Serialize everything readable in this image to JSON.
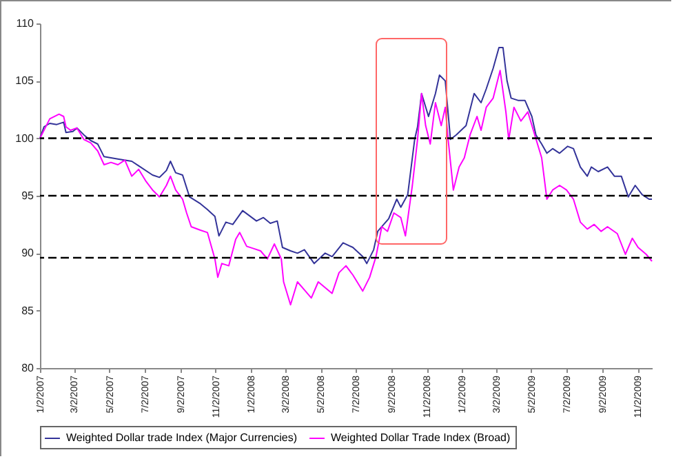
{
  "chart_data": {
    "type": "line",
    "x": [
      "2007-01-02",
      "2007-01-09",
      "2007-01-19",
      "2007-01-31",
      "2007-02-12",
      "2007-02-16",
      "2007-02-28",
      "2007-03-07",
      "2007-03-19",
      "2007-03-31",
      "2007-04-12",
      "2007-04-23",
      "2007-05-17",
      "2007-06-10",
      "2007-06-22",
      "2007-07-16",
      "2007-07-28",
      "2007-08-09",
      "2007-08-16",
      "2007-08-25",
      "2007-09-06",
      "2007-09-18",
      "2007-10-07",
      "2007-10-19",
      "2007-11-01",
      "2007-11-08",
      "2007-11-20",
      "2007-12-02",
      "2007-12-19",
      "2008-01-12",
      "2008-01-24",
      "2008-02-05",
      "2008-02-17",
      "2008-02-26",
      "2008-03-11",
      "2008-03-23",
      "2008-04-04",
      "2008-04-21",
      "2008-05-10",
      "2008-05-22",
      "2008-06-10",
      "2008-06-27",
      "2008-07-14",
      "2008-07-21",
      "2008-08-02",
      "2008-08-09",
      "2008-08-28",
      "2008-09-11",
      "2008-09-18",
      "2008-09-30",
      "2008-10-12",
      "2008-10-17",
      "2008-10-24",
      "2008-11-05",
      "2008-11-17",
      "2008-11-24",
      "2008-12-04",
      "2008-12-13",
      "2008-12-23",
      "2009-01-09",
      "2009-01-23",
      "2009-02-04",
      "2009-02-13",
      "2009-02-25",
      "2009-03-07",
      "2009-03-14",
      "2009-03-21",
      "2009-03-28",
      "2009-04-09",
      "2009-04-21",
      "2009-05-03",
      "2009-05-10",
      "2009-05-20",
      "2009-05-29",
      "2009-06-08",
      "2009-06-20",
      "2009-07-04",
      "2009-07-14",
      "2009-07-26",
      "2009-08-07",
      "2009-08-14",
      "2009-08-26",
      "2009-09-11",
      "2009-09-23",
      "2009-10-05",
      "2009-10-17",
      "2009-10-29",
      "2009-11-10",
      "2009-11-22",
      "2009-11-27"
    ],
    "series": [
      {
        "name": "Weighted Dollar trade Index (Major Currencies)",
        "color": "#333399",
        "values": [
          100.0,
          101.0,
          101.3,
          101.2,
          101.4,
          100.5,
          100.6,
          100.9,
          100.3,
          99.8,
          99.5,
          98.4,
          98.2,
          98.0,
          97.6,
          96.8,
          96.6,
          97.2,
          98.0,
          97.0,
          96.8,
          94.9,
          94.3,
          93.8,
          93.2,
          91.5,
          92.7,
          92.5,
          93.7,
          92.8,
          93.1,
          92.6,
          92.8,
          90.5,
          90.2,
          90.0,
          90.3,
          89.1,
          90.0,
          89.7,
          90.9,
          90.5,
          89.7,
          89.1,
          90.3,
          91.9,
          93.0,
          94.7,
          94.0,
          95.1,
          99.9,
          101.0,
          103.9,
          101.9,
          103.9,
          105.5,
          105.0,
          99.9,
          100.3,
          101.1,
          103.9,
          103.1,
          104.3,
          106.1,
          107.9,
          107.9,
          105.0,
          103.5,
          103.3,
          103.3,
          101.9,
          100.3,
          99.5,
          98.7,
          99.1,
          98.7,
          99.3,
          99.1,
          97.5,
          96.7,
          97.5,
          97.1,
          97.5,
          96.7,
          96.7,
          94.9,
          95.9,
          95.1,
          94.7,
          94.7
        ]
      },
      {
        "name": "Weighted Dollar Trade Index (Broad)",
        "color": "#ff00ff",
        "x": [
          "2007-01-02",
          "2007-01-19",
          "2007-02-04",
          "2007-02-12",
          "2007-02-16",
          "2007-02-24",
          "2007-03-07",
          "2007-03-19",
          "2007-03-31",
          "2007-04-12",
          "2007-04-23",
          "2007-05-05",
          "2007-05-17",
          "2007-05-29",
          "2007-06-10",
          "2007-06-22",
          "2007-07-04",
          "2007-07-16",
          "2007-07-28",
          "2007-08-09",
          "2007-08-16",
          "2007-08-25",
          "2007-09-06",
          "2007-09-13",
          "2007-09-21",
          "2007-10-07",
          "2007-10-19",
          "2007-11-01",
          "2007-11-06",
          "2007-11-13",
          "2007-11-25",
          "2007-12-07",
          "2007-12-14",
          "2007-12-26",
          "2008-01-07",
          "2008-01-19",
          "2008-01-31",
          "2008-02-12",
          "2008-02-24",
          "2008-02-28",
          "2008-03-11",
          "2008-03-23",
          "2008-04-04",
          "2008-04-16",
          "2008-04-28",
          "2008-05-22",
          "2008-06-03",
          "2008-06-15",
          "2008-06-27",
          "2008-07-14",
          "2008-07-26",
          "2008-08-06",
          "2008-08-16",
          "2008-08-26",
          "2008-09-06",
          "2008-09-18",
          "2008-09-26",
          "2008-10-08",
          "2008-10-17",
          "2008-10-24",
          "2008-10-31",
          "2008-11-08",
          "2008-11-17",
          "2008-11-27",
          "2008-12-04",
          "2008-12-09",
          "2008-12-18",
          "2008-12-28",
          "2009-01-06",
          "2009-01-16",
          "2009-01-28",
          "2009-02-04",
          "2009-02-13",
          "2009-02-25",
          "2009-03-09",
          "2009-03-19",
          "2009-03-24",
          "2009-04-02",
          "2009-04-14",
          "2009-04-26",
          "2009-05-08",
          "2009-05-20",
          "2009-05-29",
          "2009-06-08",
          "2009-06-20",
          "2009-07-02",
          "2009-07-14",
          "2009-07-26",
          "2009-08-07",
          "2009-08-19",
          "2009-08-31",
          "2009-09-11",
          "2009-09-28",
          "2009-10-12",
          "2009-10-24",
          "2009-11-03",
          "2009-11-17",
          "2009-11-27"
        ],
        "values": [
          100.0,
          101.7,
          102.1,
          101.9,
          101.0,
          100.7,
          100.9,
          99.9,
          99.6,
          98.9,
          97.7,
          97.9,
          97.7,
          98.1,
          96.7,
          97.3,
          96.3,
          95.5,
          94.9,
          95.9,
          96.7,
          95.5,
          94.7,
          93.5,
          92.3,
          92.0,
          91.8,
          89.5,
          87.9,
          89.1,
          88.9,
          91.2,
          91.8,
          90.6,
          90.4,
          90.2,
          89.5,
          90.8,
          89.5,
          87.5,
          85.5,
          87.5,
          86.8,
          86.1,
          87.5,
          86.5,
          88.3,
          88.9,
          88.1,
          86.7,
          87.9,
          89.7,
          92.3,
          91.9,
          93.5,
          93.1,
          91.5,
          95.9,
          99.9,
          103.9,
          101.1,
          99.5,
          103.1,
          101.1,
          102.7,
          99.9,
          95.5,
          97.5,
          98.3,
          100.3,
          101.9,
          100.7,
          102.7,
          103.5,
          105.9,
          102.3,
          99.9,
          102.7,
          101.5,
          102.3,
          100.3,
          98.3,
          94.7,
          95.5,
          95.9,
          95.5,
          94.7,
          92.7,
          92.1,
          92.5,
          91.9,
          92.3,
          91.7,
          89.9,
          91.3,
          90.5,
          89.9,
          89.3
        ]
      }
    ],
    "xlim": [
      "2007-01-02",
      "2009-11-27"
    ],
    "xticks": [
      {
        "value": "2007-01-02",
        "label": "1/2/2007"
      },
      {
        "value": "2007-03-02",
        "label": "3/2/2007"
      },
      {
        "value": "2007-05-02",
        "label": "5/2/2007"
      },
      {
        "value": "2007-07-02",
        "label": "7/2/2007"
      },
      {
        "value": "2007-09-02",
        "label": "9/2/2007"
      },
      {
        "value": "2007-11-02",
        "label": "11/2/2007"
      },
      {
        "value": "2008-01-02",
        "label": "1/2/2008"
      },
      {
        "value": "2008-03-02",
        "label": "3/2/2008"
      },
      {
        "value": "2008-05-02",
        "label": "5/2/2008"
      },
      {
        "value": "2008-07-02",
        "label": "7/2/2008"
      },
      {
        "value": "2008-09-02",
        "label": "9/2/2008"
      },
      {
        "value": "2008-11-02",
        "label": "11/2/2008"
      },
      {
        "value": "2009-01-02",
        "label": "1/2/2009"
      },
      {
        "value": "2009-03-02",
        "label": "3/2/2009"
      },
      {
        "value": "2009-05-02",
        "label": "5/2/2009"
      },
      {
        "value": "2009-07-02",
        "label": "7/2/2009"
      },
      {
        "value": "2009-09-02",
        "label": "9/2/2009"
      },
      {
        "value": "2009-11-02",
        "label": "11/2/2009"
      }
    ],
    "ylim": [
      80,
      110
    ],
    "yticks": [
      80,
      85,
      90,
      95,
      100,
      105,
      110
    ],
    "ref_lines": [
      {
        "axis": "y",
        "value": 100,
        "color": "#000000",
        "line_style": "dashed"
      },
      {
        "axis": "y",
        "value": 95,
        "color": "#000000",
        "line_style": "dashed"
      },
      {
        "axis": "y",
        "value": 89.6,
        "color": "#000000",
        "line_style": "dashed"
      }
    ],
    "legend": "bottom",
    "grid": false,
    "line_style": "solid",
    "marker": "none"
  }
}
